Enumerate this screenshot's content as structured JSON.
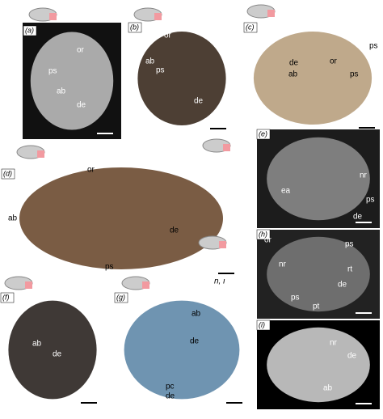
{
  "panels": [
    {
      "label": "(a)",
      "annotations": [
        "or",
        "ps",
        "ab",
        "de"
      ]
    },
    {
      "label": "(b)",
      "annotations": [
        "or",
        "ab",
        "ps",
        "de"
      ]
    },
    {
      "label": "(c)",
      "annotations": [
        "ps",
        "or",
        "ps",
        "de",
        "ab"
      ]
    },
    {
      "label": "(d)",
      "annotations": [
        "or",
        "ab",
        "de",
        "ps"
      ]
    },
    {
      "label": "(e)",
      "annotations": [
        "nr",
        "ea",
        "ps",
        "de"
      ]
    },
    {
      "label": "(h)",
      "annotations": [
        "or",
        "ps",
        "nr",
        "rt",
        "de",
        "ps",
        "pt"
      ]
    },
    {
      "label": "(i)",
      "annotations": [
        "nr",
        "de",
        "ab"
      ]
    },
    {
      "label": "(f)",
      "annotations": [
        "ab",
        "de"
      ]
    },
    {
      "label": "(g)",
      "annotations": [
        "ab",
        "de",
        "pc",
        "de"
      ]
    }
  ],
  "inset_label": "h, i"
}
